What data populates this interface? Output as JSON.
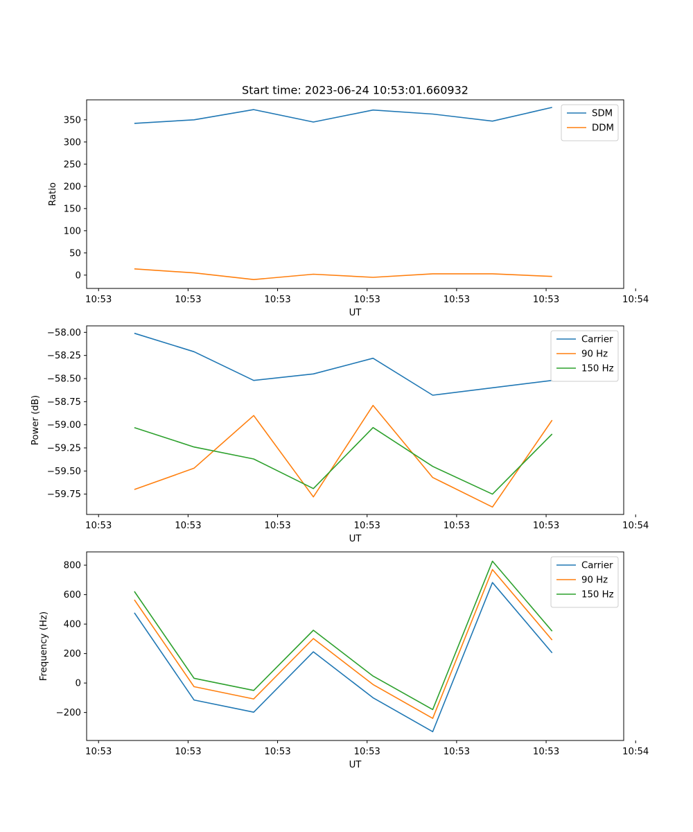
{
  "figure_title": "Start time: 2023-06-24 10:53:01.660932",
  "colors": {
    "c0": "#1f77b4",
    "c1": "#ff7f0e",
    "c2": "#2ca02c"
  },
  "chart_data": [
    {
      "type": "line",
      "title": "Start time: 2023-06-24 10:53:01.660932",
      "xlabel": "UT",
      "ylabel": "Ratio",
      "xtick_labels": [
        "10:53",
        "10:53",
        "10:53",
        "10:53",
        "10:53",
        "10:53",
        "10:54"
      ],
      "x": [
        1,
        2,
        3,
        4,
        5,
        6,
        7,
        8
      ],
      "ylim": [
        -30,
        395
      ],
      "yticks": [
        0,
        50,
        100,
        150,
        200,
        250,
        300,
        350
      ],
      "ytick_labels": [
        "0",
        "50",
        "100",
        "150",
        "200",
        "250",
        "300",
        "350"
      ],
      "grid": false,
      "legend": "top-right",
      "series": [
        {
          "name": "SDM",
          "color": "#1f77b4",
          "values": [
            342,
            350,
            373,
            345,
            372,
            363,
            347,
            378
          ]
        },
        {
          "name": "DDM",
          "color": "#ff7f0e",
          "values": [
            14,
            5,
            -10,
            2,
            -5,
            3,
            3,
            -3
          ]
        }
      ]
    },
    {
      "type": "line",
      "xlabel": "UT",
      "ylabel": "Power (dB)",
      "xtick_labels": [
        "10:53",
        "10:53",
        "10:53",
        "10:53",
        "10:53",
        "10:53",
        "10:54"
      ],
      "x": [
        1,
        2,
        3,
        4,
        5,
        6,
        7,
        8
      ],
      "ylim": [
        -59.97,
        -57.93
      ],
      "yticks": [
        -58.0,
        -58.25,
        -58.5,
        -58.75,
        -59.0,
        -59.25,
        -59.5,
        -59.75
      ],
      "ytick_labels": [
        "−58.00",
        "−58.25",
        "−58.50",
        "−58.75",
        "−59.00",
        "−59.25",
        "−59.50",
        "−59.75"
      ],
      "grid": false,
      "legend": "top-right",
      "series": [
        {
          "name": "Carrier",
          "color": "#1f77b4",
          "values": [
            -58.01,
            -58.21,
            -58.52,
            -58.45,
            -58.28,
            -58.68,
            -58.6,
            -58.52
          ]
        },
        {
          "name": "90 Hz",
          "color": "#ff7f0e",
          "values": [
            -59.7,
            -59.47,
            -58.9,
            -59.78,
            -58.79,
            -59.57,
            -59.89,
            -58.95
          ]
        },
        {
          "name": "150 Hz",
          "color": "#2ca02c",
          "values": [
            -59.03,
            -59.24,
            -59.37,
            -59.69,
            -59.03,
            -59.45,
            -59.75,
            -59.1
          ]
        }
      ]
    },
    {
      "type": "line",
      "xlabel": "UT",
      "ylabel": "Frequency (Hz)",
      "xtick_labels": [
        "10:53",
        "10:53",
        "10:53",
        "10:53",
        "10:53",
        "10:53",
        "10:54"
      ],
      "x": [
        1,
        2,
        3,
        4,
        5,
        6,
        7,
        8
      ],
      "ylim": [
        -390,
        890
      ],
      "yticks": [
        -200,
        0,
        200,
        400,
        600,
        800
      ],
      "ytick_labels": [
        "−200",
        "0",
        "200",
        "400",
        "600",
        "800"
      ],
      "grid": false,
      "legend": "top-right",
      "series": [
        {
          "name": "Carrier",
          "color": "#1f77b4",
          "values": [
            477,
            -115,
            -198,
            212,
            -100,
            -330,
            682,
            205
          ]
        },
        {
          "name": "90 Hz",
          "color": "#ff7f0e",
          "values": [
            565,
            -25,
            -108,
            302,
            -10,
            -240,
            770,
            292
          ]
        },
        {
          "name": "150 Hz",
          "color": "#2ca02c",
          "values": [
            622,
            32,
            -50,
            358,
            47,
            -180,
            827,
            352
          ]
        }
      ]
    }
  ]
}
